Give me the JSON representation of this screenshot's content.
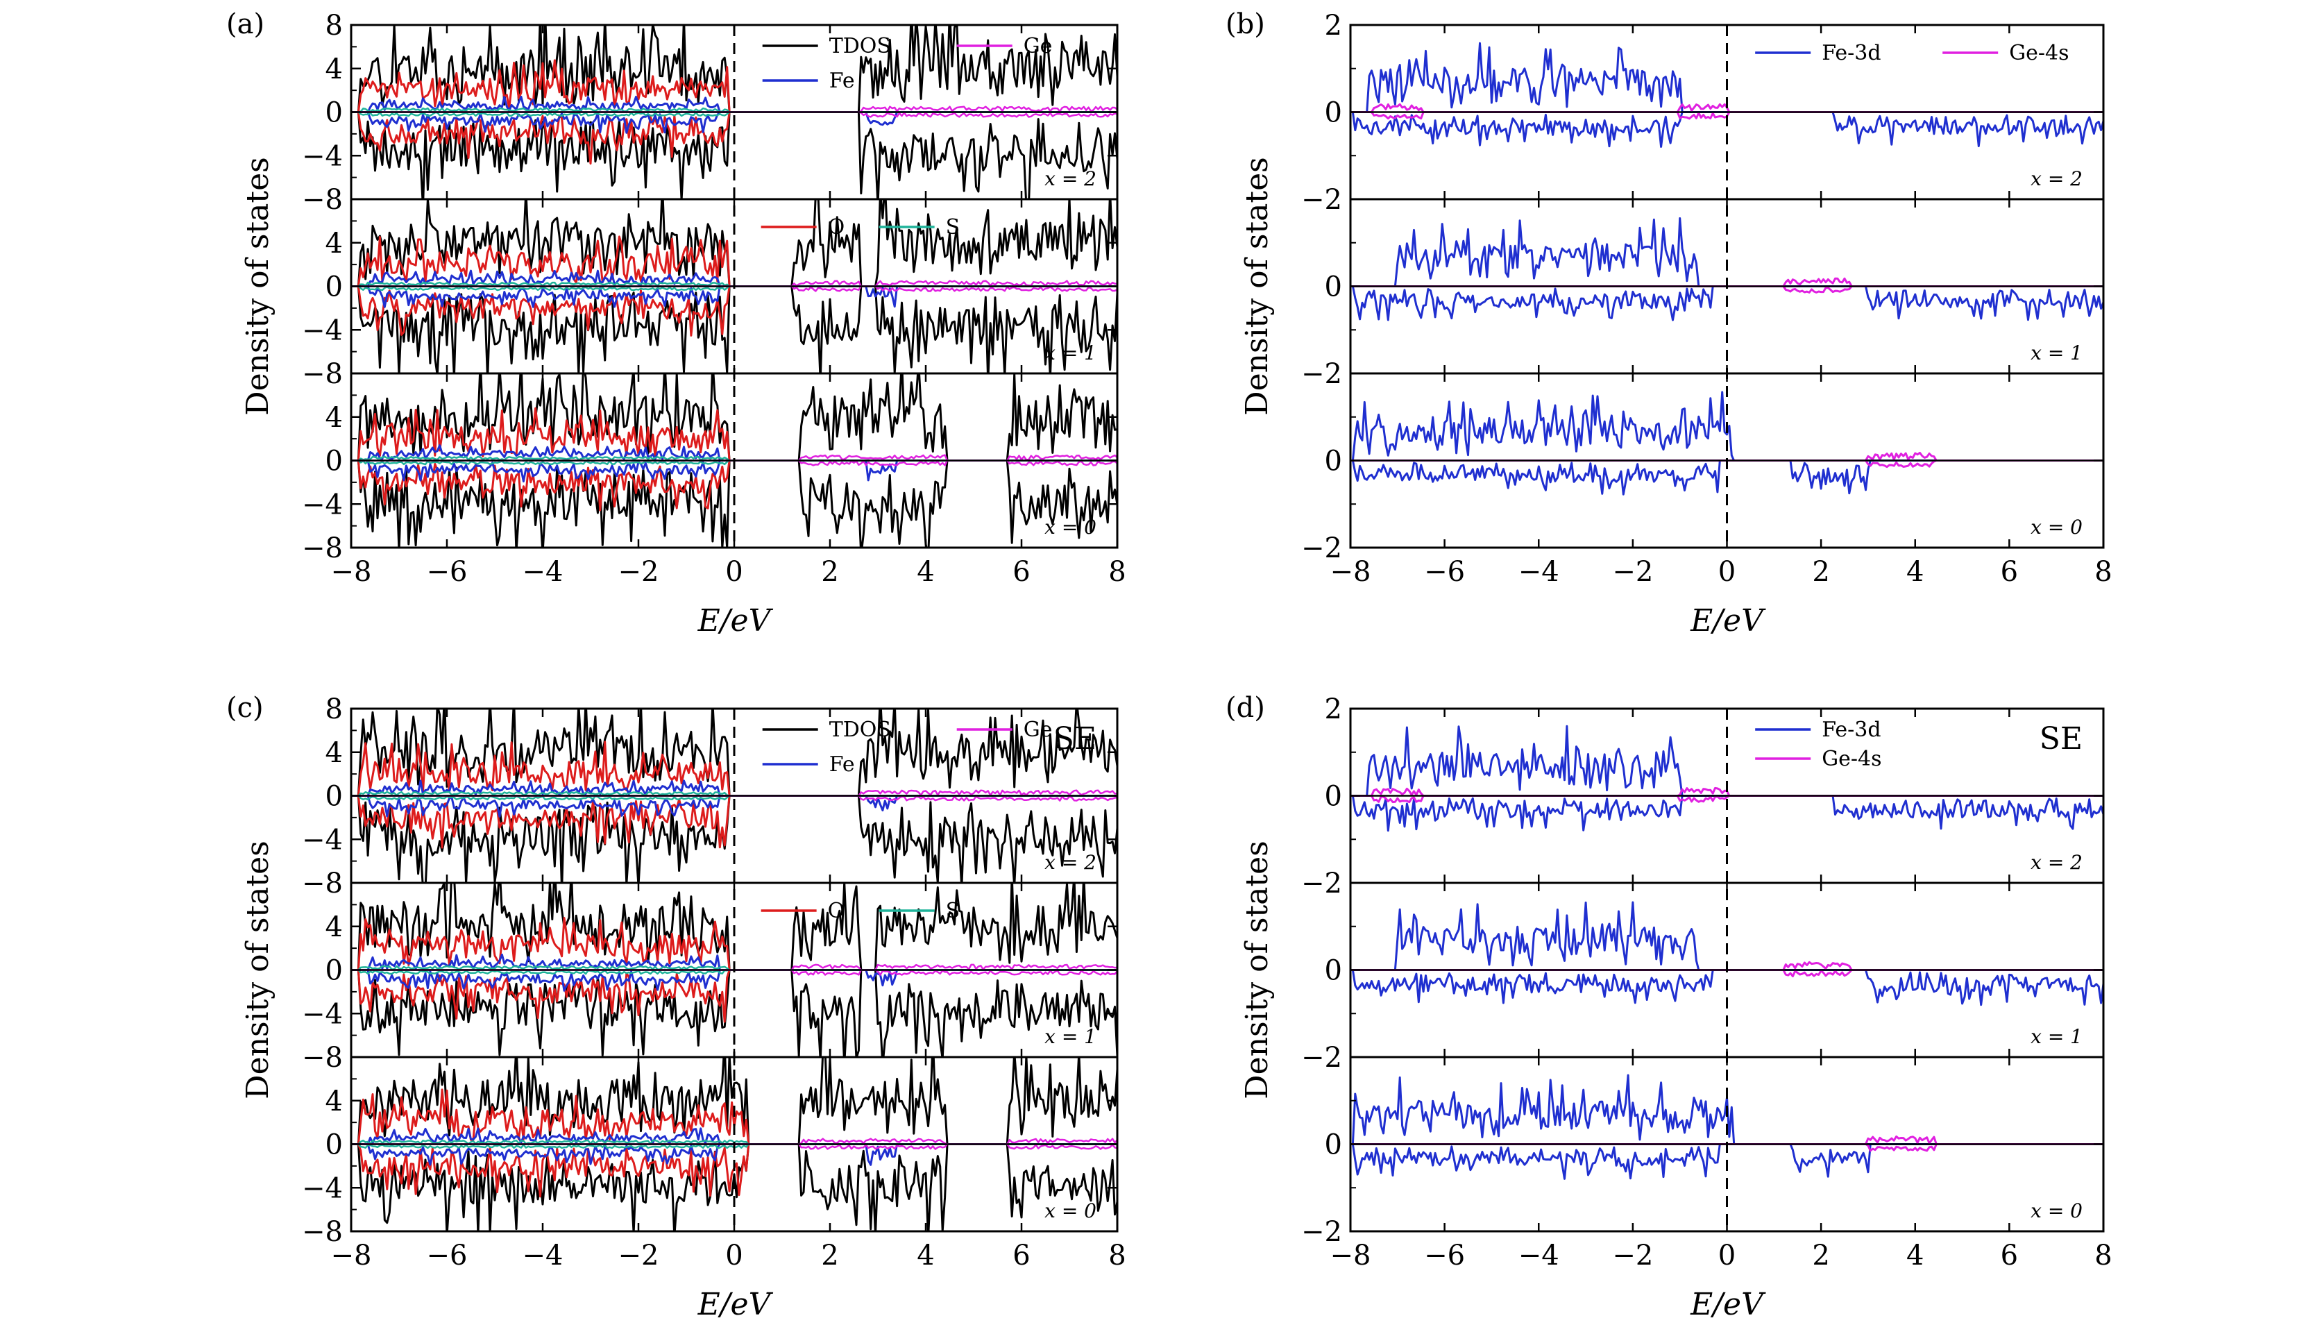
{
  "chart_data": [
    {
      "type": "line",
      "panel_label": "(a)",
      "annotation": "",
      "xlabel": "E/eV",
      "ylabel": "Density of states",
      "xlim": [
        -8,
        8
      ],
      "ylim": [
        -8,
        8
      ],
      "x_ticks": [
        "−8",
        "−6",
        "−4",
        "−2",
        "0",
        "2",
        "4",
        "6",
        "8"
      ],
      "y_ticks": [
        "8",
        "4",
        "0",
        "−4",
        "−8"
      ],
      "fermi_level": 0,
      "grid": false,
      "legend": [
        {
          "name": "TDOS",
          "color": "#000000"
        },
        {
          "name": "Ge",
          "color": "#e020e0"
        },
        {
          "name": "Fe",
          "color": "#1f2fd0"
        },
        {
          "name": "O",
          "color": "#dd1c1c"
        },
        {
          "name": "S",
          "color": "#1fb39a"
        }
      ],
      "subplots": [
        {
          "tag": "x = 2"
        },
        {
          "tag": "x = 1"
        },
        {
          "tag": "x = 0"
        }
      ]
    },
    {
      "type": "line",
      "panel_label": "(b)",
      "annotation": "",
      "xlabel": "E/eV",
      "ylabel": "Density of states",
      "xlim": [
        -8,
        8
      ],
      "ylim": [
        -2,
        2
      ],
      "x_ticks": [
        "−8",
        "−6",
        "−4",
        "−2",
        "0",
        "2",
        "4",
        "6",
        "8"
      ],
      "y_ticks": [
        "2",
        "0",
        "−2"
      ],
      "fermi_level": 0,
      "grid": false,
      "legend": [
        {
          "name": "Fe-3d",
          "color": "#1f2fd0"
        },
        {
          "name": "Ge-4s",
          "color": "#e020e0"
        }
      ],
      "subplots": [
        {
          "tag": "x = 2"
        },
        {
          "tag": "x = 1"
        },
        {
          "tag": "x = 0"
        }
      ]
    },
    {
      "type": "line",
      "panel_label": "(c)",
      "annotation": "SE",
      "xlabel": "E/eV",
      "ylabel": "Density of states",
      "xlim": [
        -8,
        8
      ],
      "ylim": [
        -8,
        8
      ],
      "x_ticks": [
        "−8",
        "−6",
        "−4",
        "−2",
        "0",
        "2",
        "4",
        "6",
        "8"
      ],
      "y_ticks": [
        "8",
        "4",
        "0",
        "−4",
        "−8"
      ],
      "fermi_level": 0,
      "grid": false,
      "legend": [
        {
          "name": "TDOS",
          "color": "#000000"
        },
        {
          "name": "Ge",
          "color": "#e020e0"
        },
        {
          "name": "Fe",
          "color": "#1f2fd0"
        },
        {
          "name": "O",
          "color": "#dd1c1c"
        },
        {
          "name": "S",
          "color": "#1fb39a"
        }
      ],
      "subplots": [
        {
          "tag": "x = 2"
        },
        {
          "tag": "x = 1"
        },
        {
          "tag": "x = 0"
        }
      ]
    },
    {
      "type": "line",
      "panel_label": "(d)",
      "annotation": "SE",
      "xlabel": "E/eV",
      "ylabel": "Density of states",
      "xlim": [
        -8,
        8
      ],
      "ylim": [
        -2,
        2
      ],
      "x_ticks": [
        "−8",
        "−6",
        "−4",
        "−2",
        "0",
        "2",
        "4",
        "6",
        "8"
      ],
      "y_ticks": [
        "2",
        "0",
        "−2"
      ],
      "fermi_level": 0,
      "grid": false,
      "legend": [
        {
          "name": "Fe-3d",
          "color": "#1f2fd0"
        },
        {
          "name": "Ge-4s",
          "color": "#e020e0"
        }
      ],
      "subplots": [
        {
          "tag": "x = 2"
        },
        {
          "tag": "x = 1"
        },
        {
          "tag": "x = 0"
        }
      ]
    }
  ]
}
